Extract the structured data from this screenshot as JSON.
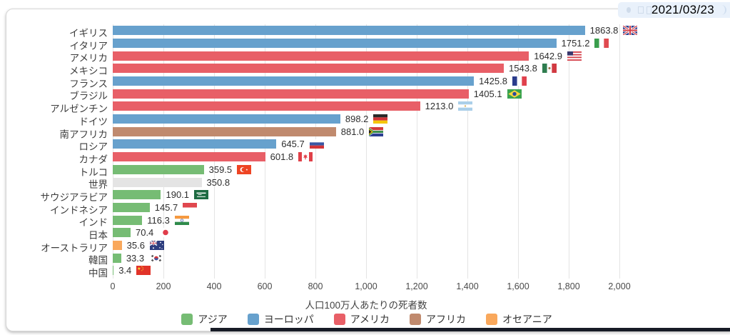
{
  "date_badge": {
    "date": "2021/03/23",
    "icons": [
      "record-icon",
      "stop-icon",
      "window-icon"
    ]
  },
  "chart_data": {
    "type": "bar",
    "orientation": "horizontal",
    "xlabel": "人口100万人あたりの死者数",
    "xlim": [
      0,
      2000
    ],
    "grid": true,
    "tick_labels": [
      "0",
      "200",
      "400",
      "600",
      "800",
      "1,000",
      "1,200",
      "1,400",
      "1,600",
      "1,800",
      "2,000"
    ],
    "region_colors": {
      "asia": "#76bc74",
      "europe": "#67a1cd",
      "america": "#e85f67",
      "africa": "#c08a6e",
      "oceania": "#f9a85c",
      "world": "#e4e4e4"
    },
    "bars": [
      {
        "label": "イギリス",
        "value": 1863.8,
        "display": "1863.8",
        "region": "europe",
        "flag": "gb"
      },
      {
        "label": "イタリア",
        "value": 1751.2,
        "display": "1751.2",
        "region": "europe",
        "flag": "it"
      },
      {
        "label": "アメリカ",
        "value": 1642.9,
        "display": "1642.9",
        "region": "america",
        "flag": "us"
      },
      {
        "label": "メキシコ",
        "value": 1543.8,
        "display": "1543.8",
        "region": "america",
        "flag": "mx"
      },
      {
        "label": "フランス",
        "value": 1425.8,
        "display": "1425.8",
        "region": "europe",
        "flag": "fr"
      },
      {
        "label": "ブラジル",
        "value": 1405.1,
        "display": "1405.1",
        "region": "america",
        "flag": "br"
      },
      {
        "label": "アルゼンチン",
        "value": 1213.0,
        "display": "1213.0",
        "region": "america",
        "flag": "ar"
      },
      {
        "label": "ドイツ",
        "value": 898.2,
        "display": "898.2",
        "region": "europe",
        "flag": "de"
      },
      {
        "label": "南アフリカ",
        "value": 881.0,
        "display": "881.0",
        "region": "africa",
        "flag": "za"
      },
      {
        "label": "ロシア",
        "value": 645.7,
        "display": "645.7",
        "region": "europe",
        "flag": "ru"
      },
      {
        "label": "カナダ",
        "value": 601.8,
        "display": "601.8",
        "region": "america",
        "flag": "ca"
      },
      {
        "label": "トルコ",
        "value": 359.5,
        "display": "359.5",
        "region": "asia",
        "flag": "tr"
      },
      {
        "label": "世界",
        "value": 350.8,
        "display": "350.8",
        "region": "world",
        "flag": ""
      },
      {
        "label": "サウジアラビア",
        "value": 190.1,
        "display": "190.1",
        "region": "asia",
        "flag": "sa"
      },
      {
        "label": "インドネシア",
        "value": 145.7,
        "display": "145.7",
        "region": "asia",
        "flag": "id"
      },
      {
        "label": "インド",
        "value": 116.3,
        "display": "116.3",
        "region": "asia",
        "flag": "in"
      },
      {
        "label": "日本",
        "value": 70.4,
        "display": "70.4",
        "region": "asia",
        "flag": "jp"
      },
      {
        "label": "オーストラリア",
        "value": 35.6,
        "display": "35.6",
        "region": "oceania",
        "flag": "au"
      },
      {
        "label": "韓国",
        "value": 33.3,
        "display": "33.3",
        "region": "asia",
        "flag": "kr"
      },
      {
        "label": "中国",
        "value": 3.4,
        "display": "3.4",
        "region": "asia",
        "flag": "cn"
      }
    ],
    "legend": [
      {
        "label": "アジア",
        "region": "asia"
      },
      {
        "label": "ヨーロッパ",
        "region": "europe"
      },
      {
        "label": "アメリカ",
        "region": "america"
      },
      {
        "label": "アフリカ",
        "region": "africa"
      },
      {
        "label": "オセアニア",
        "region": "oceania"
      }
    ]
  }
}
